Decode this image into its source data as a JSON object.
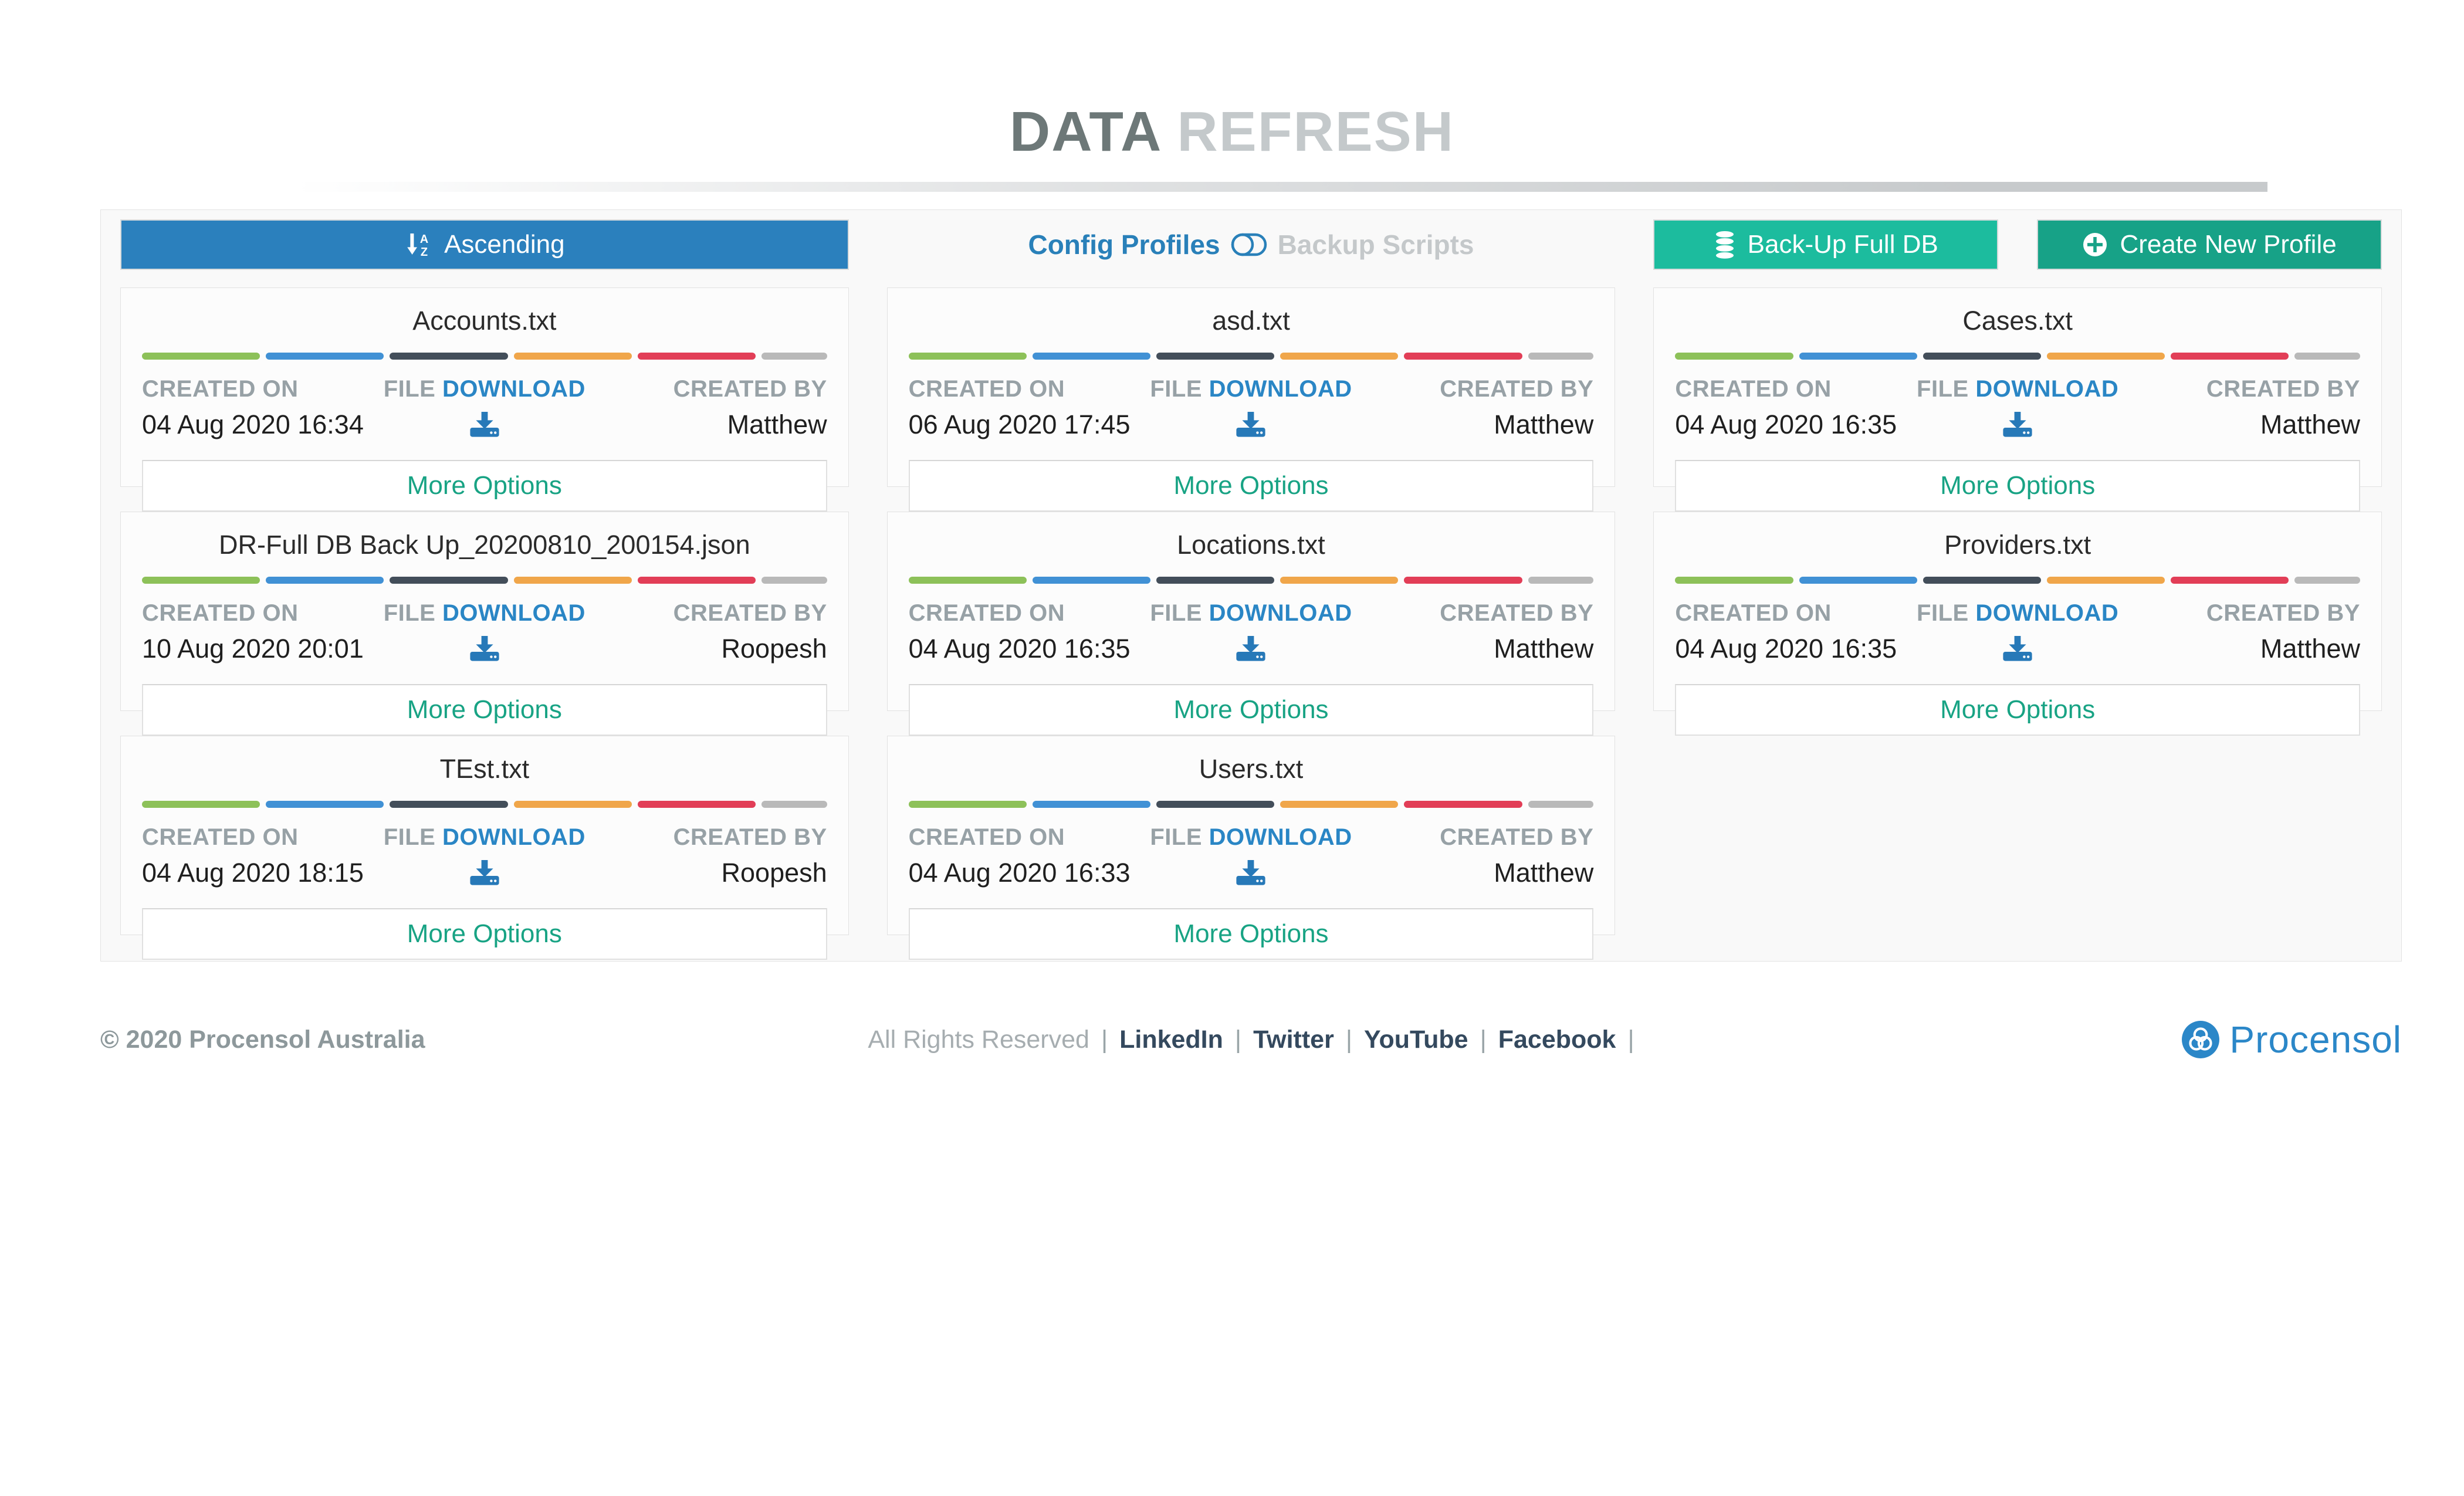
{
  "page": {
    "title_primary": "DATA",
    "title_secondary": "REFRESH"
  },
  "toolbar": {
    "sort_label": "Ascending",
    "tab_active": "Config Profiles",
    "tab_inactive": "Backup Scripts",
    "backup_label": "Back-Up Full DB",
    "create_label": "Create New Profile"
  },
  "card_labels": {
    "created_on": "CREATED ON",
    "file": "FILE",
    "download": "DOWNLOAD",
    "created_by": "CREATED BY",
    "more_options": "More Options"
  },
  "cards": [
    {
      "filename": "Accounts.txt",
      "created_on": "04 Aug 2020 16:34",
      "created_by": "Matthew"
    },
    {
      "filename": "asd.txt",
      "created_on": "06 Aug 2020 17:45",
      "created_by": "Matthew"
    },
    {
      "filename": "Cases.txt",
      "created_on": "04 Aug 2020 16:35",
      "created_by": "Matthew"
    },
    {
      "filename": "DR-Full DB Back Up_20200810_200154.json",
      "created_on": "10 Aug 2020 20:01",
      "created_by": "Roopesh"
    },
    {
      "filename": "Locations.txt",
      "created_on": "04 Aug 2020 16:35",
      "created_by": "Matthew"
    },
    {
      "filename": "Providers.txt",
      "created_on": "04 Aug 2020 16:35",
      "created_by": "Matthew"
    },
    {
      "filename": "TEst.txt",
      "created_on": "04 Aug 2020 18:15",
      "created_by": "Roopesh"
    },
    {
      "filename": "Users.txt",
      "created_on": "04 Aug 2020 16:33",
      "created_by": "Matthew"
    }
  ],
  "footer": {
    "copyright": "© 2020 Procensol Australia",
    "rights": "All Rights Reserved",
    "separator": "|",
    "links": [
      "LinkedIn",
      "Twitter",
      "YouTube",
      "Facebook"
    ],
    "brand": "Procensol"
  },
  "icons": {
    "sort": "sort-alpha-down-icon",
    "tabs_toggle": "toggle-off-icon",
    "backup": "database-icon",
    "create": "plus-circle-icon",
    "download": "download-icon",
    "brand": "procensol-knot-icon"
  },
  "colors": {
    "sort_button": "#2b80bd",
    "backup_button": "#1cbc9e",
    "create_button": "#17a287",
    "tab_active": "#2980b9",
    "tab_inactive": "#c4c8ca",
    "download_text": "#2a86c5",
    "more_options_text": "#18a384",
    "label_gray": "#97a1a6",
    "title_dark": "#6d7878",
    "title_light": "#c4c9cb",
    "footer_link": "#34495e",
    "brand_blue": "#2b87c8",
    "divider_segments": [
      "#8dc159",
      "#4191d5",
      "#434e5a",
      "#f0a64a",
      "#e23e57",
      "#b9b9b9"
    ]
  }
}
